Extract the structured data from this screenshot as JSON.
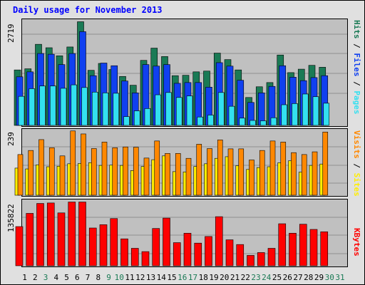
{
  "title": "Daily usage for November 2013",
  "colors": {
    "hits": "#1a7a55",
    "files": "#1040f0",
    "pages": "#33e0f0",
    "visits": "#ff8800",
    "sites": "#ffee00",
    "kbytes": "#ff0000",
    "weekday_label": "#000000",
    "weekend_label": "#1a7a55",
    "panel_bg": "#c0c0c0",
    "frame_bg": "#e0e0e0"
  },
  "chart_data": [
    {
      "type": "bar",
      "panel": "pages-files-hits",
      "y_max_label": "2719",
      "ylim": [
        0,
        2719
      ],
      "legend_labels": [
        "Pages",
        "Files",
        "Hits"
      ],
      "categories": [
        "1",
        "2",
        "3",
        "4",
        "5",
        "6",
        "7",
        "8",
        "9",
        "10",
        "11",
        "12",
        "13",
        "14",
        "15",
        "16",
        "17",
        "18",
        "19",
        "20",
        "21",
        "22",
        "23",
        "24",
        "25",
        "26",
        "27",
        "28",
        "29",
        "30",
        "31"
      ],
      "series": [
        {
          "name": "Hits",
          "values": [
            1450,
            1480,
            2120,
            2030,
            1820,
            2050,
            2710,
            1440,
            1620,
            1460,
            1280,
            1050,
            1700,
            2020,
            1800,
            1300,
            1310,
            1400,
            1420,
            1890,
            1720,
            1450,
            730,
            1010,
            1120,
            1840,
            1380,
            1470,
            1570,
            1520,
            0
          ]
        },
        {
          "name": "Files",
          "values": [
            1270,
            1400,
            1880,
            1860,
            1590,
            1880,
            2450,
            1300,
            1630,
            1560,
            1160,
            850,
            1590,
            1550,
            1590,
            1100,
            1120,
            1120,
            1000,
            1640,
            1550,
            1180,
            600,
            850,
            1020,
            1560,
            1260,
            1170,
            1250,
            1300,
            0
          ]
        },
        {
          "name": "Pages",
          "values": [
            760,
            960,
            1030,
            1030,
            970,
            1060,
            990,
            870,
            850,
            840,
            230,
            380,
            440,
            800,
            860,
            730,
            770,
            220,
            270,
            860,
            500,
            190,
            130,
            120,
            200,
            540,
            570,
            820,
            750,
            580,
            0
          ]
        }
      ]
    },
    {
      "type": "bar",
      "panel": "sites-visits",
      "y_max_label": "239",
      "ylim": [
        0,
        239
      ],
      "legend_labels": [
        "Sites",
        "Visits"
      ],
      "categories": [
        "1",
        "2",
        "3",
        "4",
        "5",
        "6",
        "7",
        "8",
        "9",
        "10",
        "11",
        "12",
        "13",
        "14",
        "15",
        "16",
        "17",
        "18",
        "19",
        "20",
        "21",
        "22",
        "23",
        "24",
        "25",
        "26",
        "27",
        "28",
        "29",
        "30",
        "31"
      ],
      "series": [
        {
          "name": "Visits",
          "values": [
            150,
            165,
            205,
            175,
            145,
            237,
            226,
            172,
            196,
            175,
            178,
            177,
            137,
            200,
            154,
            154,
            136,
            188,
            172,
            204,
            171,
            171,
            130,
            165,
            200,
            196,
            157,
            150,
            160,
            233,
            0
          ]
        },
        {
          "name": "Sites",
          "values": [
            100,
            97,
            112,
            105,
            107,
            116,
            117,
            120,
            110,
            111,
            110,
            91,
            106,
            131,
            145,
            87,
            86,
            106,
            116,
            136,
            142,
            109,
            95,
            102,
            105,
            120,
            127,
            85,
            110,
            115,
            0
          ]
        }
      ]
    },
    {
      "type": "bar",
      "panel": "kbytes",
      "y_max_label": "135822",
      "ylim": [
        0,
        135822
      ],
      "legend_labels": [
        "KBytes"
      ],
      "categories": [
        "1",
        "2",
        "3",
        "4",
        "5",
        "6",
        "7",
        "8",
        "9",
        "10",
        "11",
        "12",
        "13",
        "14",
        "15",
        "16",
        "17",
        "18",
        "19",
        "20",
        "21",
        "22",
        "23",
        "24",
        "25",
        "26",
        "27",
        "28",
        "29",
        "30",
        "31"
      ],
      "series": [
        {
          "name": "KBytes",
          "values": [
            83000,
            111000,
            132000,
            133000,
            112000,
            135000,
            135000,
            80000,
            87000,
            100000,
            57000,
            37000,
            30000,
            79000,
            101000,
            49000,
            69000,
            48000,
            62000,
            104000,
            55000,
            45000,
            22000,
            28000,
            37000,
            89000,
            69000,
            88000,
            77000,
            72000,
            0
          ]
        }
      ]
    }
  ],
  "weekend_days": [
    3,
    9,
    10,
    16,
    17,
    23,
    24,
    30,
    31
  ]
}
